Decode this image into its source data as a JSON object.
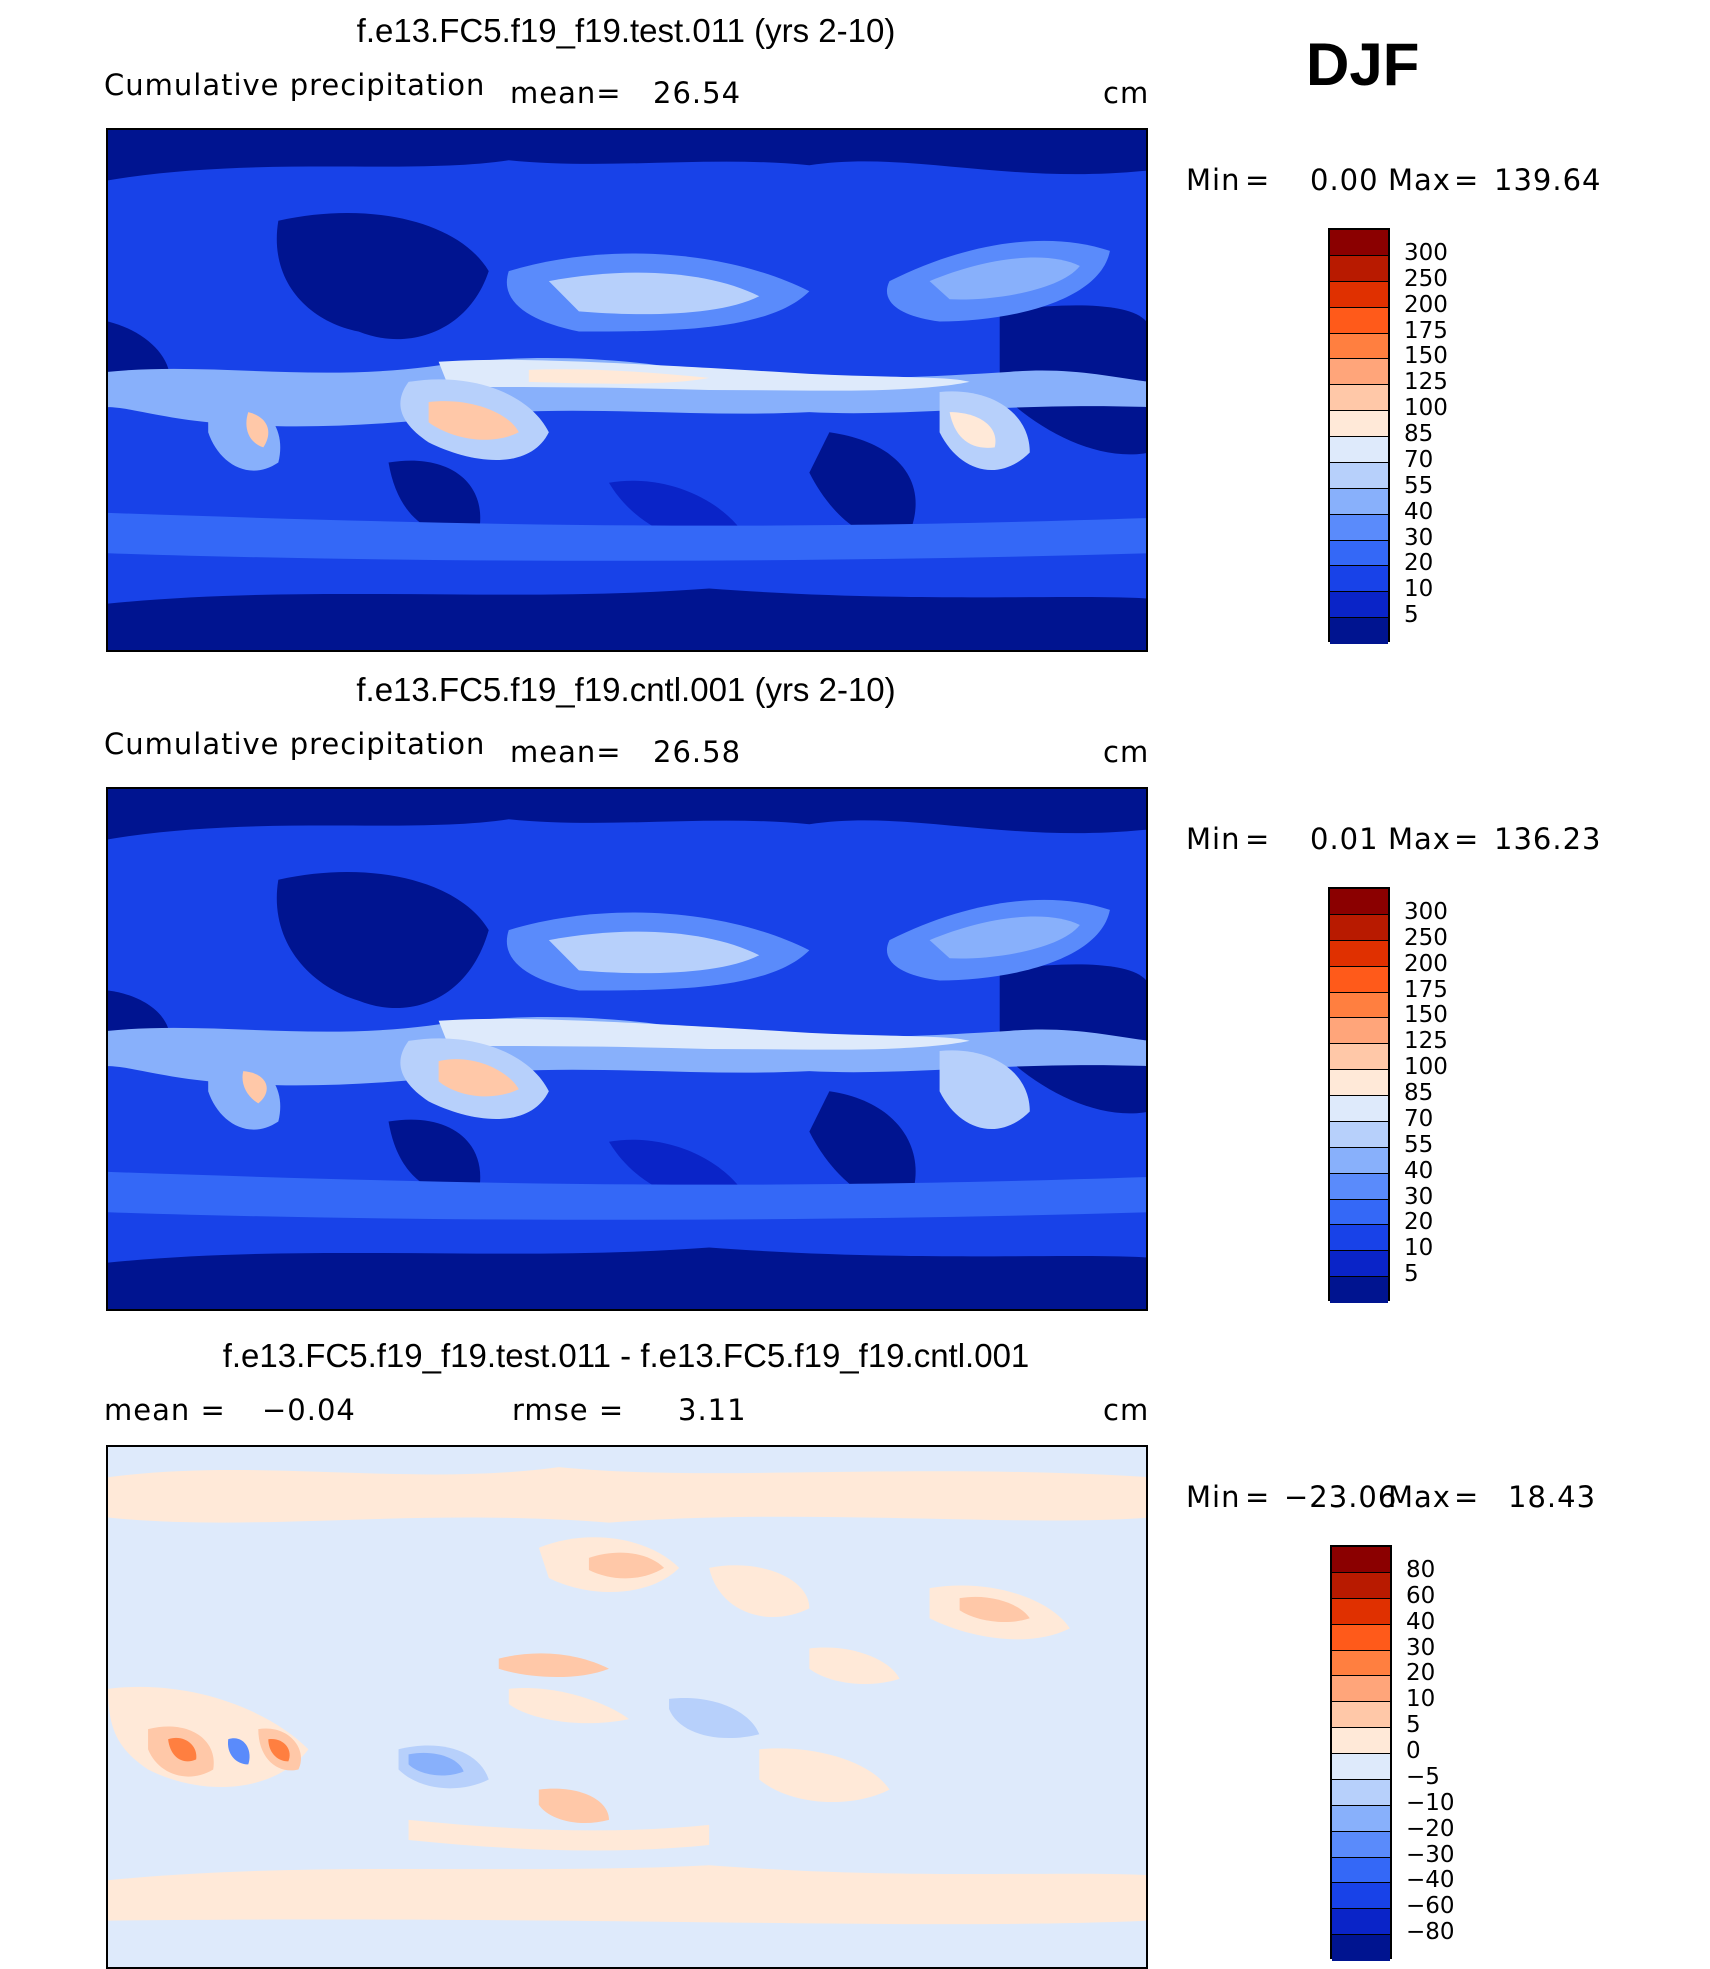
{
  "season": "DJF",
  "panels": [
    {
      "title": "f.e13.FC5.f19_f19.test.011 (yrs 2-10)",
      "left_label": "Cumulative precipitation",
      "mid_label": "mean=",
      "mid_value": "26.54",
      "units": "cm",
      "min_label": "Min",
      "eq": "=",
      "min_value": "0.00",
      "max_label": "Max",
      "max_value": "139.64"
    },
    {
      "title": "f.e13.FC5.f19_f19.cntl.001 (yrs 2-10)",
      "left_label": "Cumulative precipitation",
      "mid_label": "mean=",
      "mid_value": "26.58",
      "units": "cm",
      "min_label": "Min",
      "eq": "=",
      "min_value": "0.01",
      "max_label": "Max",
      "max_value": "136.23"
    },
    {
      "title": "f.e13.FC5.f19_f19.test.011 - f.e13.FC5.f19_f19.cntl.001",
      "left_label": "mean =",
      "left_value": "−0.04",
      "mid_label": "rmse =",
      "mid_value": "3.11",
      "units": "cm",
      "min_label": "Min",
      "eq": "=",
      "min_value": "−23.06",
      "max_label": "Max",
      "max_value": "18.43"
    }
  ],
  "colorbars": {
    "precip": {
      "levels": [
        "300",
        "250",
        "200",
        "175",
        "150",
        "125",
        "100",
        "85",
        "70",
        "55",
        "40",
        "30",
        "20",
        "10",
        "5"
      ],
      "colors": [
        "#8b0000",
        "#b81a00",
        "#e03000",
        "#ff5a1a",
        "#ff7f40",
        "#ffa57a",
        "#ffc8a8",
        "#ffe9d8",
        "#deeafb",
        "#b7d0fb",
        "#88b0fb",
        "#5a8bfb",
        "#3468f7",
        "#1842e8",
        "#0a24c8",
        "#001490"
      ]
    },
    "diff": {
      "levels": [
        "80",
        "60",
        "40",
        "30",
        "20",
        "10",
        "5",
        "0",
        "−5",
        "−10",
        "−20",
        "−30",
        "−40",
        "−60",
        "−80"
      ],
      "colors": [
        "#8b0000",
        "#b81a00",
        "#e03000",
        "#ff5a1a",
        "#ff7f40",
        "#ffa57a",
        "#ffc8a8",
        "#ffe9d8",
        "#deeafb",
        "#b7d0fb",
        "#88b0fb",
        "#5a8bfb",
        "#3468f7",
        "#1842e8",
        "#0a24c8",
        "#001490"
      ]
    }
  }
}
